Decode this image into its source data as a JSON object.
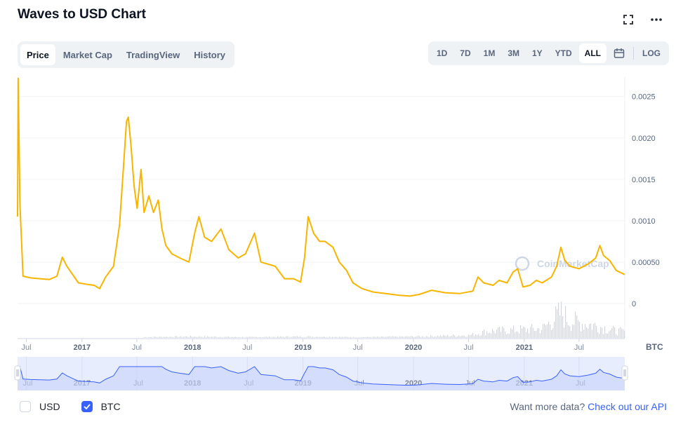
{
  "header": {
    "title": "Waves to USD Chart"
  },
  "tabs": [
    {
      "label": "Price",
      "active": true
    },
    {
      "label": "Market Cap",
      "active": false
    },
    {
      "label": "TradingView",
      "active": false
    },
    {
      "label": "History",
      "active": false
    }
  ],
  "ranges": [
    {
      "label": "1D",
      "active": false
    },
    {
      "label": "7D",
      "active": false
    },
    {
      "label": "1M",
      "active": false
    },
    {
      "label": "3M",
      "active": false
    },
    {
      "label": "1Y",
      "active": false
    },
    {
      "label": "YTD",
      "active": false
    },
    {
      "label": "ALL",
      "active": true
    }
  ],
  "log_label": "LOG",
  "watermark": "CoinMarketCap",
  "legend": {
    "usd_label": "USD",
    "btc_label": "BTC",
    "usd_checked": false,
    "btc_checked": true
  },
  "api": {
    "prefix": "Want more data? ",
    "link": "Check out our API"
  },
  "colors": {
    "line": "#f7b500",
    "accent": "#3861fb",
    "navigator_fill": "#e8edfd"
  },
  "chart_data": {
    "type": "line",
    "unit": "BTC",
    "y_ticks": [
      0,
      0.0005,
      0.001,
      0.0015,
      0.002,
      0.0025
    ],
    "y_tick_labels": [
      "0",
      "0.00050",
      "0.0010",
      "0.0015",
      "0.0020",
      "0.0025"
    ],
    "ylim": [
      0,
      0.00265
    ],
    "x_tick_labels": [
      {
        "date": "2016-07-01",
        "label": "Jul",
        "major": false
      },
      {
        "date": "2017-01-01",
        "label": "2017",
        "major": true
      },
      {
        "date": "2017-07-01",
        "label": "Jul",
        "major": false
      },
      {
        "date": "2018-01-01",
        "label": "2018",
        "major": true
      },
      {
        "date": "2018-07-01",
        "label": "Jul",
        "major": false
      },
      {
        "date": "2019-01-01",
        "label": "2019",
        "major": true
      },
      {
        "date": "2019-07-01",
        "label": "Jul",
        "major": false
      },
      {
        "date": "2020-01-01",
        "label": "2020",
        "major": true
      },
      {
        "date": "2020-07-01",
        "label": "Jul",
        "major": false
      },
      {
        "date": "2021-01-01",
        "label": "2021",
        "major": true
      },
      {
        "date": "2021-07-01",
        "label": "Jul",
        "major": false
      }
    ],
    "xlim": [
      "2016-06-02",
      "2021-11-29"
    ],
    "series": [
      {
        "name": "BTC",
        "points": [
          [
            "2016-06-02",
            0.00105
          ],
          [
            "2016-06-04",
            0.00272
          ],
          [
            "2016-06-10",
            0.0012
          ],
          [
            "2016-06-20",
            0.00033
          ],
          [
            "2016-07-15",
            0.00031
          ],
          [
            "2016-08-15",
            0.0003
          ],
          [
            "2016-09-15",
            0.00029
          ],
          [
            "2016-10-10",
            0.00033
          ],
          [
            "2016-10-28",
            0.00056
          ],
          [
            "2016-11-12",
            0.00045
          ],
          [
            "2016-12-01",
            0.00035
          ],
          [
            "2016-12-20",
            0.00025
          ],
          [
            "2017-01-20",
            0.00023
          ],
          [
            "2017-02-10",
            0.00022
          ],
          [
            "2017-02-28",
            0.00018
          ],
          [
            "2017-03-20",
            0.00032
          ],
          [
            "2017-04-15",
            0.00045
          ],
          [
            "2017-05-05",
            0.00095
          ],
          [
            "2017-05-18",
            0.00165
          ],
          [
            "2017-05-28",
            0.0022
          ],
          [
            "2017-06-03",
            0.00225
          ],
          [
            "2017-06-12",
            0.0019
          ],
          [
            "2017-06-22",
            0.00142
          ],
          [
            "2017-07-02",
            0.00115
          ],
          [
            "2017-07-15",
            0.00162
          ],
          [
            "2017-07-25",
            0.0011
          ],
          [
            "2017-08-10",
            0.0013
          ],
          [
            "2017-08-25",
            0.0011
          ],
          [
            "2017-09-10",
            0.00125
          ],
          [
            "2017-09-22",
            0.0009
          ],
          [
            "2017-10-05",
            0.0007
          ],
          [
            "2017-10-25",
            0.0006
          ],
          [
            "2017-11-20",
            0.00055
          ],
          [
            "2017-12-20",
            0.0005
          ],
          [
            "2018-01-08",
            0.00085
          ],
          [
            "2018-01-22",
            0.00105
          ],
          [
            "2018-02-10",
            0.0008
          ],
          [
            "2018-03-05",
            0.00075
          ],
          [
            "2018-04-05",
            0.0009
          ],
          [
            "2018-05-01",
            0.00065
          ],
          [
            "2018-06-01",
            0.00055
          ],
          [
            "2018-06-25",
            0.0006
          ],
          [
            "2018-07-25",
            0.00085
          ],
          [
            "2018-08-15",
            0.0005
          ],
          [
            "2018-10-01",
            0.00045
          ],
          [
            "2018-11-01",
            0.0003
          ],
          [
            "2018-12-01",
            0.0003
          ],
          [
            "2018-12-24",
            0.00026
          ],
          [
            "2019-01-06",
            0.00055
          ],
          [
            "2019-01-18",
            0.00105
          ],
          [
            "2019-02-05",
            0.00085
          ],
          [
            "2019-02-25",
            0.00075
          ],
          [
            "2019-03-15",
            0.00075
          ],
          [
            "2019-04-10",
            0.00068
          ],
          [
            "2019-05-01",
            0.0005
          ],
          [
            "2019-05-25",
            0.0004
          ],
          [
            "2019-06-15",
            0.00025
          ],
          [
            "2019-07-15",
            0.00018
          ],
          [
            "2019-08-20",
            0.00014
          ],
          [
            "2019-10-01",
            0.00012
          ],
          [
            "2019-11-15",
            0.0001
          ],
          [
            "2019-12-20",
            9e-05
          ],
          [
            "2020-01-20",
            0.00011
          ],
          [
            "2020-03-01",
            0.00016
          ],
          [
            "2020-04-15",
            0.00013
          ],
          [
            "2020-06-01",
            0.00012
          ],
          [
            "2020-07-15",
            0.00015
          ],
          [
            "2020-08-01",
            0.00032
          ],
          [
            "2020-08-20",
            0.00025
          ],
          [
            "2020-09-20",
            0.00022
          ],
          [
            "2020-10-10",
            0.00028
          ],
          [
            "2020-11-05",
            0.00025
          ],
          [
            "2020-11-25",
            0.00038
          ],
          [
            "2020-12-10",
            0.00042
          ],
          [
            "2020-12-28",
            0.0002
          ],
          [
            "2021-01-20",
            0.00022
          ],
          [
            "2021-02-10",
            0.00028
          ],
          [
            "2021-03-01",
            0.00025
          ],
          [
            "2021-04-01",
            0.00032
          ],
          [
            "2021-04-18",
            0.00045
          ],
          [
            "2021-05-02",
            0.00068
          ],
          [
            "2021-05-15",
            0.00052
          ],
          [
            "2021-06-01",
            0.00045
          ],
          [
            "2021-07-01",
            0.00042
          ],
          [
            "2021-08-01",
            0.00048
          ],
          [
            "2021-08-25",
            0.00055
          ],
          [
            "2021-09-08",
            0.0007
          ],
          [
            "2021-09-20",
            0.00058
          ],
          [
            "2021-10-10",
            0.00052
          ],
          [
            "2021-11-01",
            0.0004
          ],
          [
            "2021-11-29",
            0.00035
          ]
        ]
      }
    ],
    "volume": [
      [
        "2017-01",
        1
      ],
      [
        "2017-07",
        1
      ],
      [
        "2018-01",
        2
      ],
      [
        "2018-07",
        1
      ],
      [
        "2019-01",
        2
      ],
      [
        "2019-07",
        1
      ],
      [
        "2020-01",
        2
      ],
      [
        "2020-07",
        4
      ],
      [
        "2020-09",
        10
      ],
      [
        "2020-12",
        12
      ],
      [
        "2021-03",
        14
      ],
      [
        "2021-05",
        38
      ],
      [
        "2021-06",
        26
      ],
      [
        "2021-09",
        18
      ],
      [
        "2021-11",
        10
      ]
    ],
    "navigator_x_labels": [
      "Jul",
      "2017",
      "Jul",
      "2018",
      "Jul",
      "2019",
      "Jul",
      "2020",
      "Jul",
      "2021",
      "Jul"
    ]
  }
}
